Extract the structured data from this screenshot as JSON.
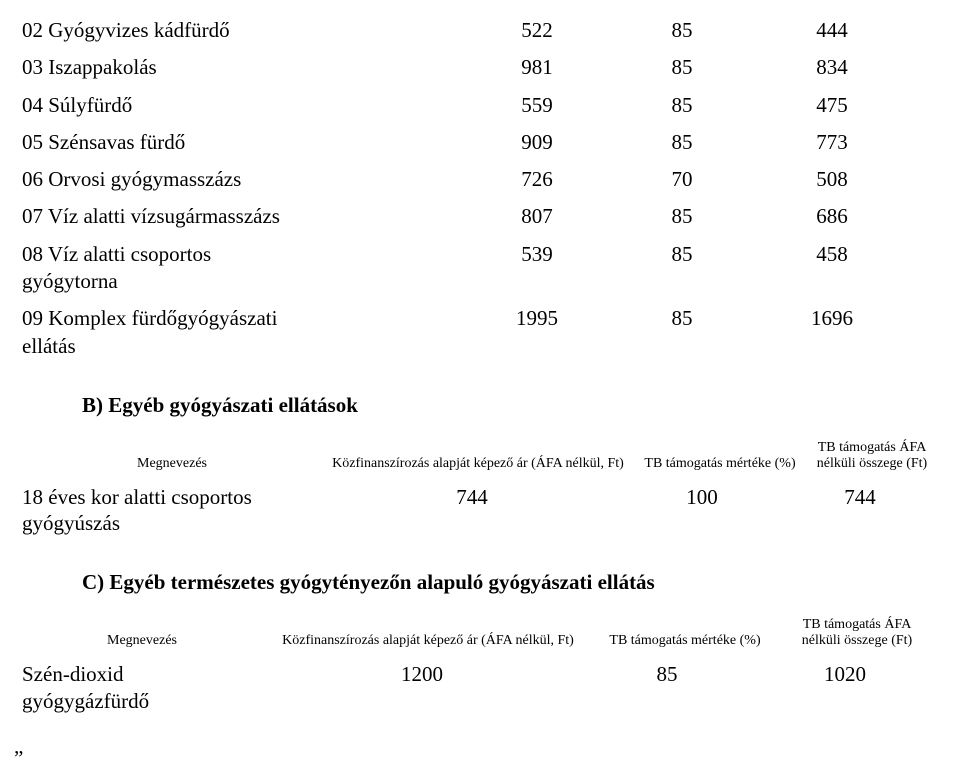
{
  "tableA": {
    "rows": [
      {
        "name": "02 Gyógyvizes kádfürdő",
        "v1": "522",
        "v2": "85",
        "v3": "444"
      },
      {
        "name": "03 Iszappakolás",
        "v1": "981",
        "v2": "85",
        "v3": "834"
      },
      {
        "name": "04 Súlyfürdő",
        "v1": "559",
        "v2": "85",
        "v3": "475"
      },
      {
        "name": "05 Szénsavas fürdő",
        "v1": "909",
        "v2": "85",
        "v3": "773"
      },
      {
        "name": "06 Orvosi gyógymasszázs",
        "v1": "726",
        "v2": "70",
        "v3": "508"
      },
      {
        "name": "07 Víz alatti vízsugármasszázs",
        "v1": "807",
        "v2": "85",
        "v3": "686"
      },
      {
        "name": "08 Víz alatti csoportos\ngyógytorna",
        "v1": "539",
        "v2": "85",
        "v3": "458"
      },
      {
        "name": "09 Komplex fürdőgyógyászati\nellátás",
        "v1": "1995",
        "v2": "85",
        "v3": "1696"
      }
    ]
  },
  "sectionB": {
    "title": "B) Egyéb gyógyászati ellátások",
    "headers": {
      "name": "Megnevezés",
      "col1": "Közfinanszírozás alapját képező ár (ÁFA nélkül, Ft)",
      "col2": "TB támogatás mértéke (%)",
      "col3": "TB támogatás ÁFA nélküli összege (Ft)"
    },
    "row": {
      "name": "18 éves kor alatti csoportos\ngyógyúszás",
      "v1": "744",
      "v2": "100",
      "v3": "744"
    }
  },
  "sectionC": {
    "title": "C) Egyéb természetes gyógytényezőn alapuló gyógyászati ellátás",
    "headers": {
      "name": "Megnevezés",
      "col1": "Közfinanszírozás alapját képező ár (ÁFA nélkül, Ft)",
      "col2": "TB támogatás mértéke (%)",
      "col3": "TB támogatás ÁFA nélküli összege (Ft)"
    },
    "row": {
      "name": "Szén-dioxid\ngyógygázfürdő",
      "v1": "1200",
      "v2": "85",
      "v3": "1020"
    }
  },
  "trailingQuote": "„"
}
